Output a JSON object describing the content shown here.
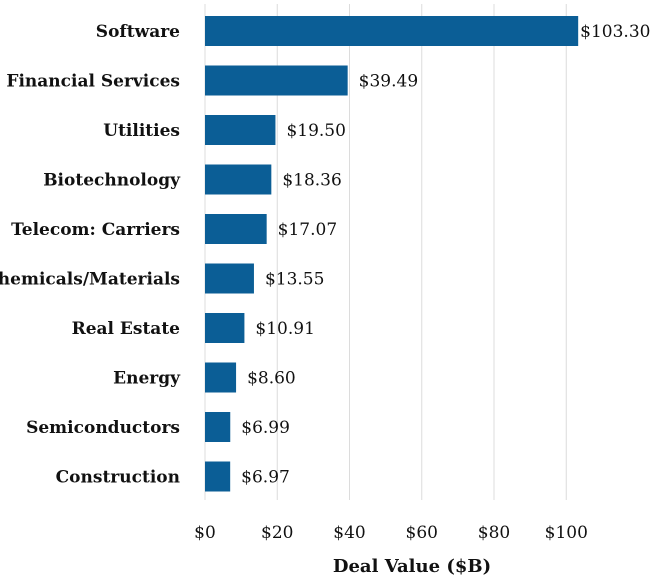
{
  "chart_data": {
    "type": "bar",
    "orientation": "horizontal",
    "title": "",
    "xlabel": "Deal Value ($B)",
    "ylabel": "",
    "xlim": [
      0,
      110
    ],
    "x_ticks": [
      0,
      20,
      40,
      60,
      80,
      100
    ],
    "x_tick_labels": [
      "$0",
      "$20",
      "$40",
      "$60",
      "$80",
      "$100"
    ],
    "grid": true,
    "categories": [
      "Software",
      "Financial Services",
      "Utilities",
      "Biotechnology",
      "Telecom: Carriers",
      "Chemicals/Materials",
      "Real Estate",
      "Energy",
      "Semiconductors",
      "Construction"
    ],
    "values": [
      103.3,
      39.49,
      19.5,
      18.36,
      17.07,
      13.55,
      10.91,
      8.6,
      6.99,
      6.97
    ],
    "value_labels": [
      "$103.30",
      "$39.49",
      "$19.50",
      "$18.36",
      "$17.07",
      "$13.55",
      "$10.91",
      "$8.60",
      "$6.99",
      "$6.97"
    ],
    "colors": {
      "bar": "#0b5e96",
      "grid": "#dcdcdc",
      "text": "#111111"
    }
  }
}
